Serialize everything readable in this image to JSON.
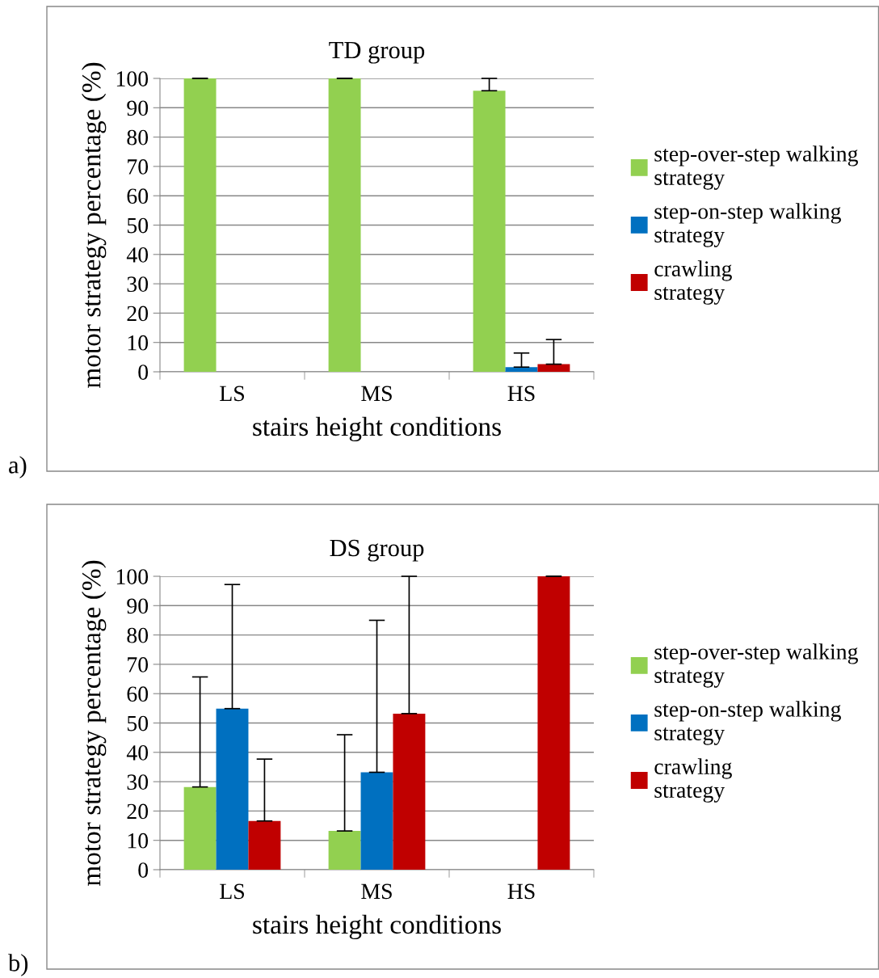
{
  "chart_data": [
    {
      "type": "bar",
      "title": "TD group",
      "xlabel": "stairs height conditions",
      "ylabel": "motor strategy percentage (%)",
      "categories": [
        "LS",
        "MS",
        "HS"
      ],
      "series": [
        {
          "name": "step-over-step walking strategy",
          "color": "#92d050",
          "values": [
            100,
            100,
            95.8
          ],
          "errors": [
            [
              100,
              100
            ],
            [
              100,
              100
            ],
            [
              95.8,
              100
            ]
          ]
        },
        {
          "name": "step-on-step walking strategy",
          "color": "#0070c0",
          "values": [
            0,
            0,
            1.6
          ],
          "errors": [
            null,
            null,
            [
              1.6,
              6.4
            ]
          ]
        },
        {
          "name": "crawling strategy",
          "color": "#c00000",
          "values": [
            0,
            0,
            2.6
          ],
          "errors": [
            null,
            null,
            [
              2.6,
              11.0
            ]
          ]
        }
      ],
      "ylim": [
        0,
        100
      ],
      "yticks": [
        0,
        10,
        20,
        30,
        40,
        50,
        60,
        70,
        80,
        90,
        100
      ],
      "grid": "y",
      "legend": "right",
      "annotations": [
        "a)"
      ]
    },
    {
      "type": "bar",
      "title": "DS group",
      "xlabel": "stairs height conditions",
      "ylabel": "motor strategy percentage (%)",
      "categories": [
        "LS",
        "MS",
        "HS"
      ],
      "series": [
        {
          "name": "step-over-step walking strategy",
          "color": "#92d050",
          "values": [
            28.2,
            13.2,
            0
          ],
          "errors": [
            [
              28.2,
              65.7
            ],
            [
              13.2,
              46.0
            ],
            null
          ]
        },
        {
          "name": "step-on-step walking strategy",
          "color": "#0070c0",
          "values": [
            54.9,
            33.2,
            0
          ],
          "errors": [
            [
              54.9,
              97.2
            ],
            [
              33.2,
              85.0
            ],
            null
          ]
        },
        {
          "name": "crawling strategy",
          "color": "#c00000",
          "values": [
            16.6,
            53.2,
            100
          ],
          "errors": [
            [
              16.6,
              37.7
            ],
            [
              53.2,
              100
            ],
            [
              100,
              100
            ]
          ]
        }
      ],
      "ylim": [
        0,
        100
      ],
      "yticks": [
        0,
        10,
        20,
        30,
        40,
        50,
        60,
        70,
        80,
        90,
        100
      ],
      "grid": "y",
      "legend": "right",
      "annotations": [
        "b)"
      ]
    }
  ]
}
